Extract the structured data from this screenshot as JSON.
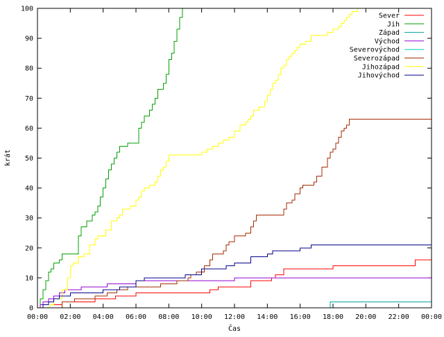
{
  "chart_data": {
    "type": "line",
    "title": "",
    "xlabel": "Čas",
    "ylabel": "krát",
    "xlim": [
      "00:00",
      "00:00"
    ],
    "ylim": [
      0,
      100
    ],
    "x_tick_labels": [
      "00:00",
      "02:00",
      "04:00",
      "06:00",
      "08:00",
      "10:00",
      "12:00",
      "14:00",
      "16:00",
      "18:00",
      "20:00",
      "22:00",
      "00:00"
    ],
    "y_ticks": [
      0,
      10,
      20,
      30,
      40,
      50,
      60,
      70,
      80,
      90,
      100
    ],
    "y_tick_labels": [
      "0",
      "10",
      "20",
      "30",
      "40",
      "50",
      "60",
      "70",
      "80",
      "90",
      "100"
    ],
    "grid": false,
    "legend_position": "top-right",
    "step": true,
    "series": [
      {
        "name": "Sever",
        "color": "#ff0000",
        "x": [
          "00:00",
          "00:45",
          "01:30",
          "02:00",
          "03:30",
          "04:45",
          "06:00",
          "06:30",
          "08:00",
          "10:30",
          "11:00",
          "11:30",
          "13:00",
          "14:15",
          "14:30",
          "15:00",
          "18:00",
          "22:00",
          "23:00",
          "24:00"
        ],
        "y": [
          0,
          1,
          2,
          2,
          3,
          4,
          5,
          5,
          5,
          6,
          7,
          7,
          9,
          10,
          11,
          13,
          14,
          14,
          16,
          16
        ]
      },
      {
        "name": "Jih",
        "color": "#00a000",
        "x": [
          "00:00",
          "00:10",
          "00:20",
          "00:30",
          "00:40",
          "00:50",
          "01:00",
          "01:20",
          "01:30",
          "01:40",
          "02:00",
          "02:30",
          "02:40",
          "03:00",
          "03:20",
          "03:30",
          "03:40",
          "03:50",
          "04:00",
          "04:10",
          "04:20",
          "04:30",
          "04:40",
          "04:50",
          "05:00",
          "05:20",
          "05:30",
          "05:50",
          "06:10",
          "06:20",
          "06:30",
          "06:40",
          "06:50",
          "07:00",
          "07:10",
          "07:20",
          "07:40",
          "07:50",
          "08:00",
          "08:10",
          "08:20",
          "08:30",
          "08:40",
          "08:50"
        ],
        "y": [
          0,
          3,
          6,
          9,
          12,
          13,
          15,
          16,
          18,
          18,
          18,
          24,
          27,
          29,
          31,
          32,
          34,
          37,
          40,
          43,
          46,
          48,
          50,
          52,
          54,
          54,
          55,
          55,
          60,
          62,
          64,
          64,
          66,
          68,
          70,
          73,
          75,
          78,
          83,
          85,
          89,
          93,
          97,
          100
        ]
      },
      {
        "name": "Západ",
        "color": "#00a0a0",
        "x": [
          "17:45",
          "17:50",
          "24:00"
        ],
        "y": [
          0,
          2,
          2
        ]
      },
      {
        "name": "Východ",
        "color": "#9400d3",
        "x": [
          "00:00",
          "00:10",
          "00:20",
          "00:40",
          "01:00",
          "01:20",
          "01:40",
          "02:00",
          "02:40",
          "03:00",
          "04:15",
          "05:00",
          "06:00",
          "08:00",
          "09:00",
          "10:00",
          "12:00",
          "14:00",
          "16:00",
          "20:00",
          "24:00"
        ],
        "y": [
          0,
          1,
          2,
          3,
          4,
          5,
          6,
          6,
          7,
          7,
          8,
          8,
          9,
          9,
          9,
          9,
          10,
          10,
          10,
          10,
          10
        ]
      },
      {
        "name": "Severovýchod",
        "color": "#00c8c8",
        "x": [],
        "y": []
      },
      {
        "name": "Severozápad",
        "color": "#a52a00",
        "x": [
          "00:00",
          "01:30",
          "02:15",
          "03:30",
          "04:15",
          "04:50",
          "05:30",
          "07:30",
          "08:30",
          "09:10",
          "09:20",
          "09:40",
          "10:10",
          "10:30",
          "10:40",
          "11:10",
          "11:20",
          "11:30",
          "11:40",
          "12:00",
          "12:20",
          "12:40",
          "13:00",
          "13:10",
          "13:20",
          "14:00",
          "14:40",
          "15:00",
          "15:10",
          "15:30",
          "15:40",
          "16:00",
          "16:10",
          "16:30",
          "16:50",
          "17:00",
          "17:20",
          "17:40",
          "17:50",
          "18:00",
          "18:10",
          "18:20",
          "18:30",
          "18:40",
          "18:50",
          "19:00",
          "24:00"
        ],
        "y": [
          0,
          2,
          3,
          4,
          5,
          6,
          7,
          8,
          9,
          10,
          11,
          12,
          14,
          16,
          18,
          18,
          19,
          21,
          22,
          24,
          24,
          25,
          27,
          29,
          31,
          31,
          31,
          33,
          35,
          36,
          38,
          40,
          41,
          41,
          42,
          44,
          47,
          50,
          52,
          53,
          55,
          57,
          59,
          60,
          61,
          63,
          63
        ]
      },
      {
        "name": "Jihozápad",
        "color": "#ffff00",
        "x": [
          "00:00",
          "00:45",
          "01:00",
          "01:30",
          "01:50",
          "02:00",
          "02:10",
          "02:30",
          "02:50",
          "03:10",
          "03:30",
          "03:40",
          "03:50",
          "04:10",
          "04:30",
          "04:50",
          "05:00",
          "05:10",
          "05:20",
          "05:40",
          "06:00",
          "06:10",
          "06:20",
          "06:30",
          "06:50",
          "07:10",
          "07:20",
          "07:30",
          "07:40",
          "07:50",
          "08:00",
          "08:20",
          "10:00",
          "10:20",
          "10:40",
          "11:00",
          "11:20",
          "11:40",
          "12:00",
          "12:20",
          "12:40",
          "12:50",
          "13:00",
          "13:10",
          "13:30",
          "13:50",
          "14:00",
          "14:10",
          "14:20",
          "14:30",
          "14:40",
          "14:50",
          "15:00",
          "15:10",
          "15:20",
          "15:30",
          "15:40",
          "15:50",
          "16:00",
          "16:20",
          "16:40",
          "17:00",
          "17:20",
          "17:40",
          "18:00",
          "18:20",
          "18:30",
          "18:40",
          "18:50",
          "19:00",
          "19:10",
          "19:30",
          "20:00"
        ],
        "y": [
          0,
          1,
          3,
          6,
          10,
          14,
          15,
          17,
          18,
          21,
          23,
          24,
          24,
          26,
          29,
          30,
          31,
          33,
          33,
          34,
          36,
          37,
          39,
          40,
          41,
          42,
          44,
          46,
          47,
          49,
          51,
          51,
          52,
          53,
          54,
          55,
          56,
          57,
          59,
          61,
          62,
          63,
          64,
          66,
          67,
          69,
          71,
          73,
          75,
          76,
          78,
          80,
          81,
          83,
          84,
          85,
          86,
          87,
          88,
          89,
          91,
          91,
          91,
          92,
          93,
          94,
          95,
          96,
          97,
          98,
          99,
          100,
          100
        ]
      },
      {
        "name": "Jihovýchod",
        "color": "#00008b",
        "x": [
          "00:00",
          "00:20",
          "00:40",
          "01:00",
          "01:20",
          "02:00",
          "04:00",
          "04:30",
          "05:00",
          "06:00",
          "06:30",
          "07:00",
          "08:00",
          "09:00",
          "10:00",
          "11:00",
          "11:30",
          "12:00",
          "13:00",
          "14:00",
          "14:20",
          "15:00",
          "16:00",
          "16:40",
          "17:00",
          "20:00",
          "24:00"
        ],
        "y": [
          0,
          1,
          2,
          3,
          4,
          5,
          6,
          6,
          7,
          9,
          10,
          10,
          10,
          11,
          13,
          13,
          14,
          15,
          17,
          18,
          19,
          19,
          20,
          21,
          21,
          21,
          21
        ]
      }
    ]
  }
}
